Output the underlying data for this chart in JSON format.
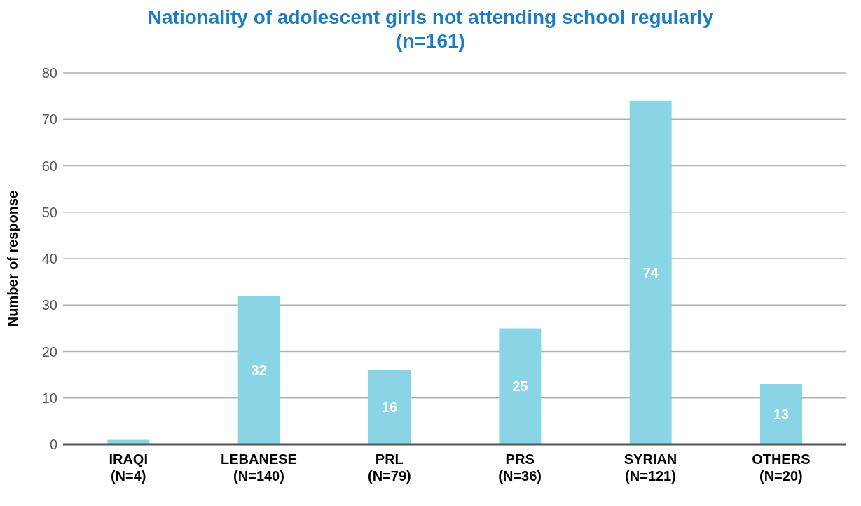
{
  "chart_data": {
    "type": "bar",
    "title": "Nationality of adolescent girls not attending school regularly\n(n=161)",
    "ylabel": "Number of response",
    "categories": [
      "IRAQI\n(N=4)",
      "LEBANESE\n(N=140)",
      "PRL\n(N=79)",
      "PRS\n(N=36)",
      "SYRIAN\n(N=121)",
      "OTHERS\n(N=20)"
    ],
    "values": [
      1,
      32,
      16,
      25,
      74,
      13
    ],
    "value_labels": [
      null,
      "32",
      "16",
      "25",
      "74",
      "13"
    ],
    "color": "#89d5e6",
    "ylim": [
      0,
      80
    ],
    "yticks": [
      0,
      10,
      20,
      30,
      40,
      50,
      60,
      70,
      80
    ],
    "grid": "y"
  }
}
